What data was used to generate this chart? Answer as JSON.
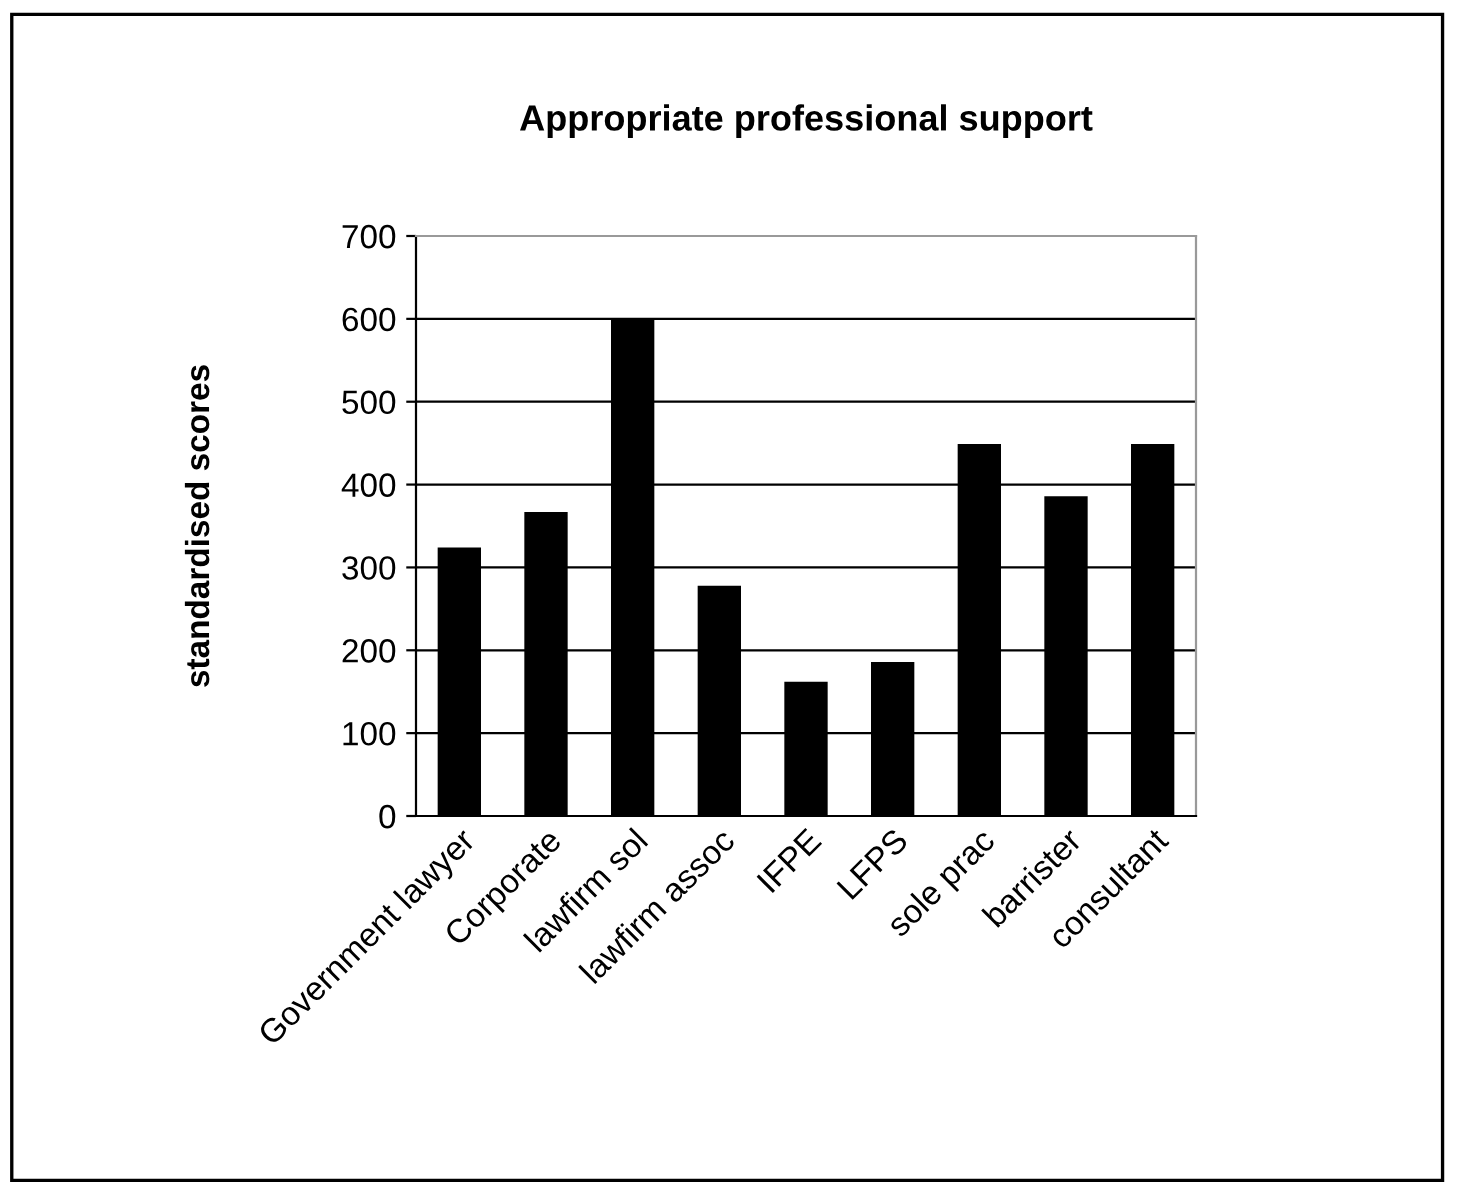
{
  "chart_data": {
    "type": "bar",
    "title": "Appropriate professional support",
    "ylabel": "standardised scores",
    "categories": [
      "Government lawyer",
      "Corporate",
      "lawfirm sol",
      "lawfirm assoc",
      "IFPE",
      "LFPS",
      "sole prac",
      "barrister",
      "consultant"
    ],
    "values": [
      324,
      367,
      600,
      278,
      162,
      186,
      449,
      386,
      449
    ],
    "color": "#000000",
    "ylim": [
      0,
      700
    ],
    "yticks": [
      0,
      100,
      200,
      300,
      400,
      500,
      600,
      700
    ],
    "grid": "y",
    "legend": false
  }
}
